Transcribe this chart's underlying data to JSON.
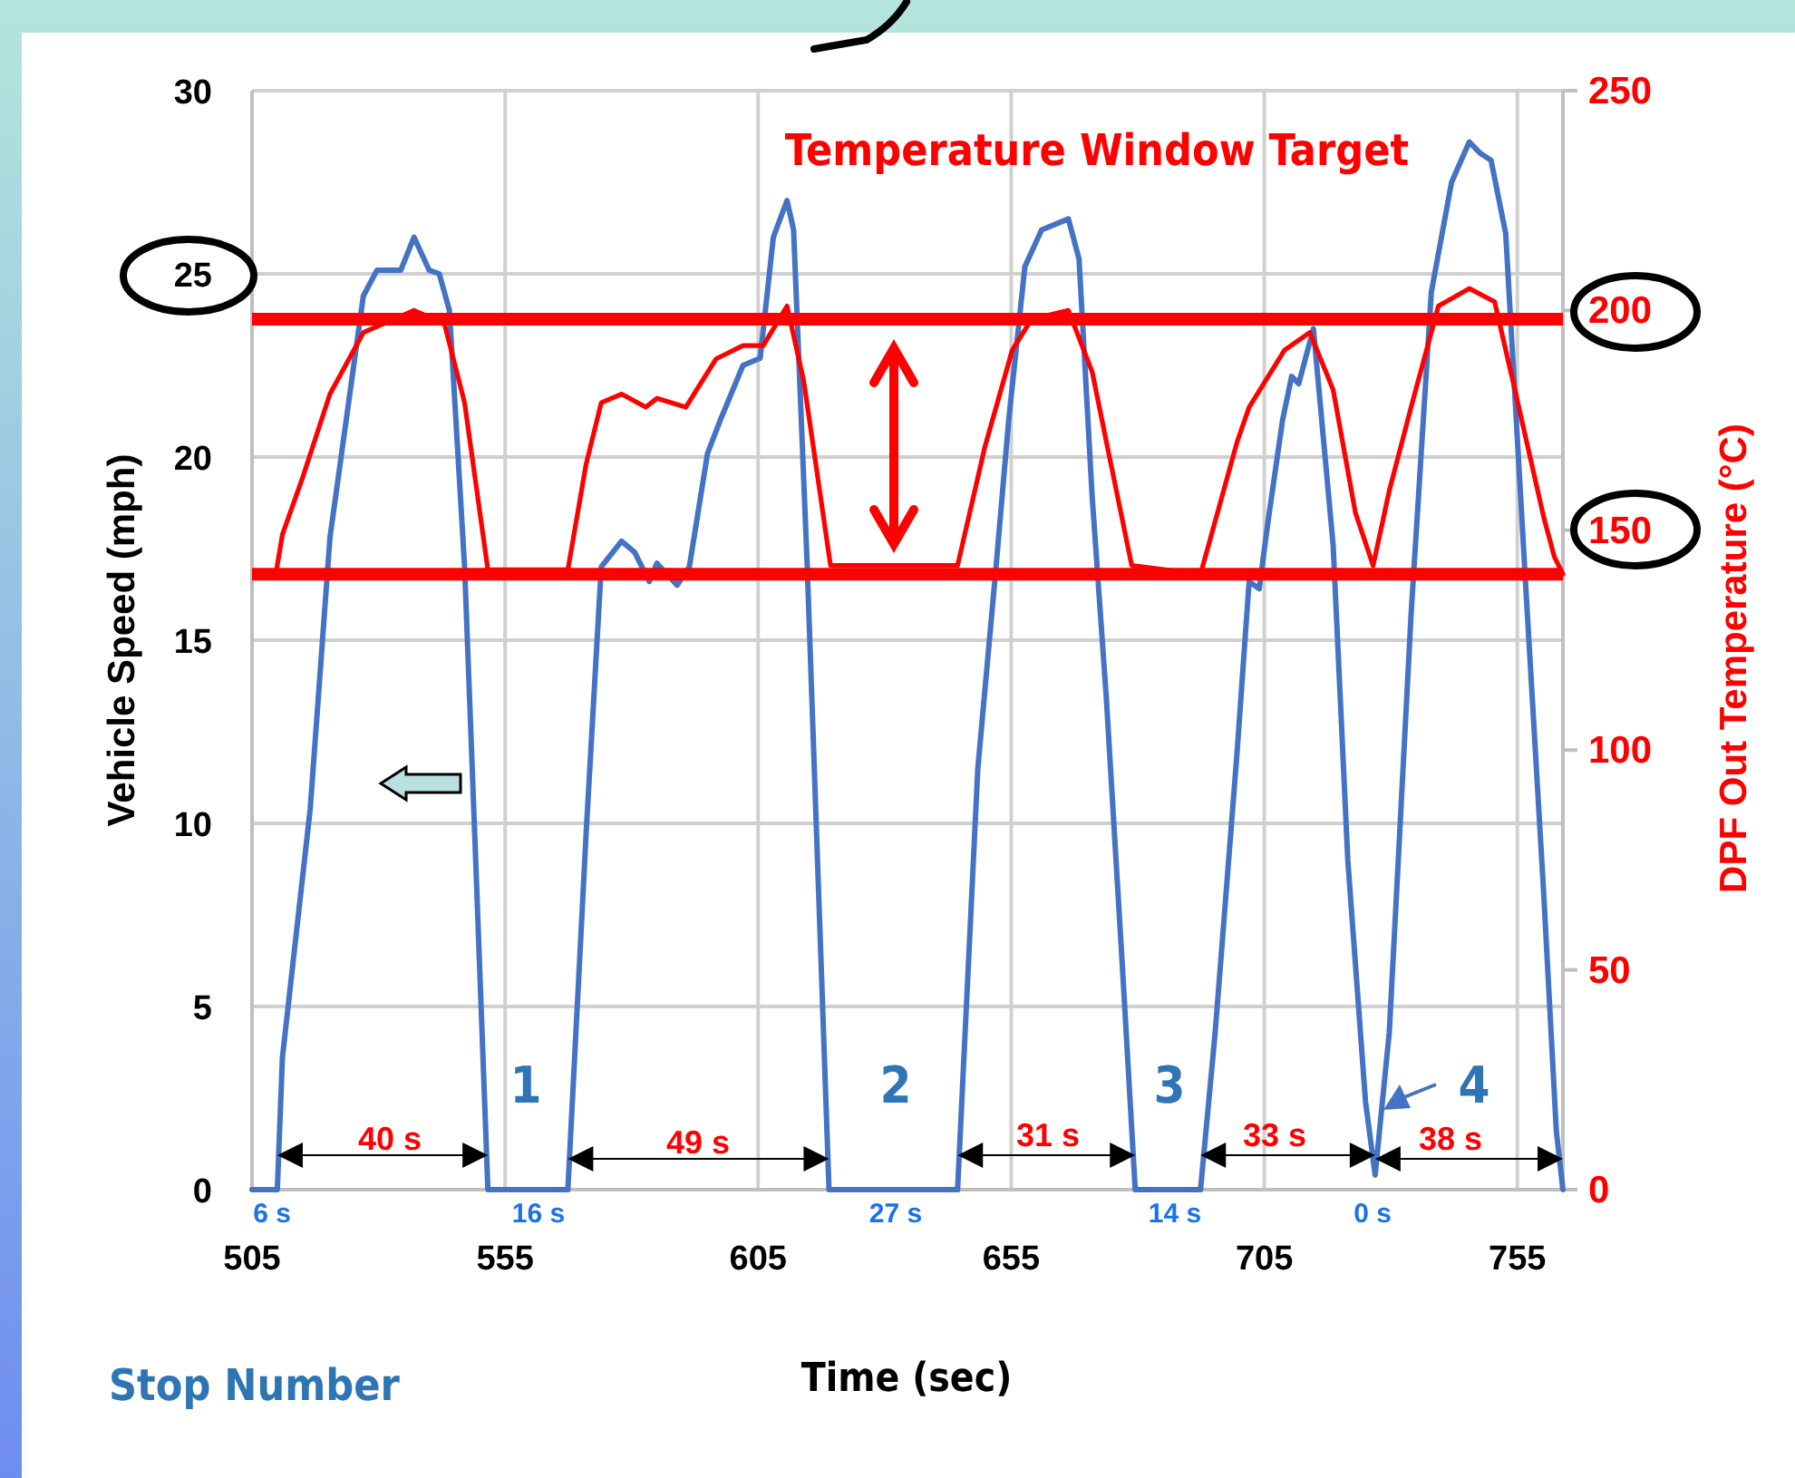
{
  "chart_data": {
    "type": "line",
    "xlabel": "Time (sec)",
    "ylabel": "Vehicle Speed (mph)",
    "y2label": "DPF Out Temperature (°C)",
    "xlim": [
      505,
      764
    ],
    "xticks": [
      505,
      555,
      605,
      655,
      705,
      755
    ],
    "ylim": [
      0,
      30
    ],
    "yticks": [
      0,
      5,
      10,
      15,
      20,
      25,
      30
    ],
    "y2lim": [
      0,
      250
    ],
    "y2ticks": [
      0,
      50,
      100,
      150,
      200,
      250
    ],
    "grid": true,
    "line_style": "solid",
    "marker": "none",
    "series": [
      {
        "color": "#4472c4",
        "x": [
          505,
          510,
          511,
          516.5,
          520.4,
          527,
          529.7,
          534.4,
          537,
          540,
          542,
          544,
          547,
          549,
          551.6,
          567.4,
          571,
          574,
          578,
          580.6,
          583.5,
          585,
          589,
          591.4,
          595,
          597.5,
          602,
          605.4,
          608,
          610.7,
          612,
          614.7,
          617,
          619,
          644.4,
          648.4,
          652,
          654.5,
          657.7,
          661,
          666.3,
          668.4,
          671,
          673.8,
          677,
          679.5,
          692.4,
          695.3,
          699.6,
          702,
          704,
          705.7,
          708.6,
          710.4,
          711.8,
          714.7,
          718.6,
          721.5,
          725,
          726.9,
          729.7,
          734,
          738,
          742,
          745.5,
          747.6,
          749.8,
          752.7,
          756.6,
          760.2,
          762.7,
          764
        ],
        "values": [
          0,
          0,
          3.6,
          10.4,
          17.8,
          24.4,
          25.1,
          25.1,
          26,
          25.1,
          25,
          24,
          17,
          9.7,
          0,
          0,
          9.7,
          17,
          17.7,
          17.4,
          16.6,
          17.1,
          16.5,
          17,
          20.1,
          21,
          22.5,
          22.7,
          26,
          27,
          26.2,
          17,
          7.9,
          0,
          0,
          11.5,
          17,
          21,
          25.2,
          26.2,
          26.5,
          25.4,
          18.9,
          13.4,
          6,
          0,
          0,
          4.3,
          11.9,
          16.6,
          16.4,
          18.2,
          21,
          22.2,
          22,
          23.5,
          17.6,
          9,
          2.4,
          0.4,
          4.3,
          15.7,
          24.5,
          27.5,
          28.6,
          28.3,
          28.1,
          26.1,
          16.6,
          8.1,
          1.6,
          0
        ]
      },
      {
        "color": "#ff0000",
        "axis": "y2",
        "x": [
          509.7,
          511,
          515,
          520.4,
          527,
          537,
          543,
          547,
          551.6,
          567.4,
          571,
          574,
          578,
          582.8,
          585,
          590.7,
          596.7,
          602,
          606,
          610.7,
          614,
          619.3,
          644.4,
          649.8,
          655.2,
          659,
          666.3,
          671,
          674,
          678.8,
          692.4,
          699.6,
          702,
          709,
          714,
          718.6,
          723,
          726.5,
          729.7,
          734,
          739.4,
          745.5,
          750.5,
          754.5,
          760.2,
          762.3,
          764
        ],
        "values": [
          140,
          149,
          162,
          181,
          195,
          200,
          197,
          179,
          141,
          141,
          165,
          179,
          181,
          178,
          180,
          178,
          189,
          192,
          192,
          201,
          184,
          142,
          142,
          169,
          191,
          198,
          200,
          186,
          169,
          142,
          140,
          170,
          178,
          191,
          195,
          182,
          154,
          142,
          159,
          178,
          201,
          205,
          202,
          182,
          153,
          144,
          140
        ]
      }
    ],
    "ref_lines": [
      {
        "axis": "y2",
        "value": 198,
        "label": "Temperature Window Target",
        "color": "#ff0000"
      },
      {
        "axis": "y2",
        "value": 140,
        "label": null,
        "color": "#ff0000"
      }
    ],
    "annotations": [
      "40 s",
      "49 s",
      "31 s",
      "33 s",
      "38 s",
      "6 s",
      "16 s",
      "27 s",
      "14 s",
      "0 s",
      "1",
      "2",
      "3",
      "4",
      "Stop Number"
    ]
  }
}
